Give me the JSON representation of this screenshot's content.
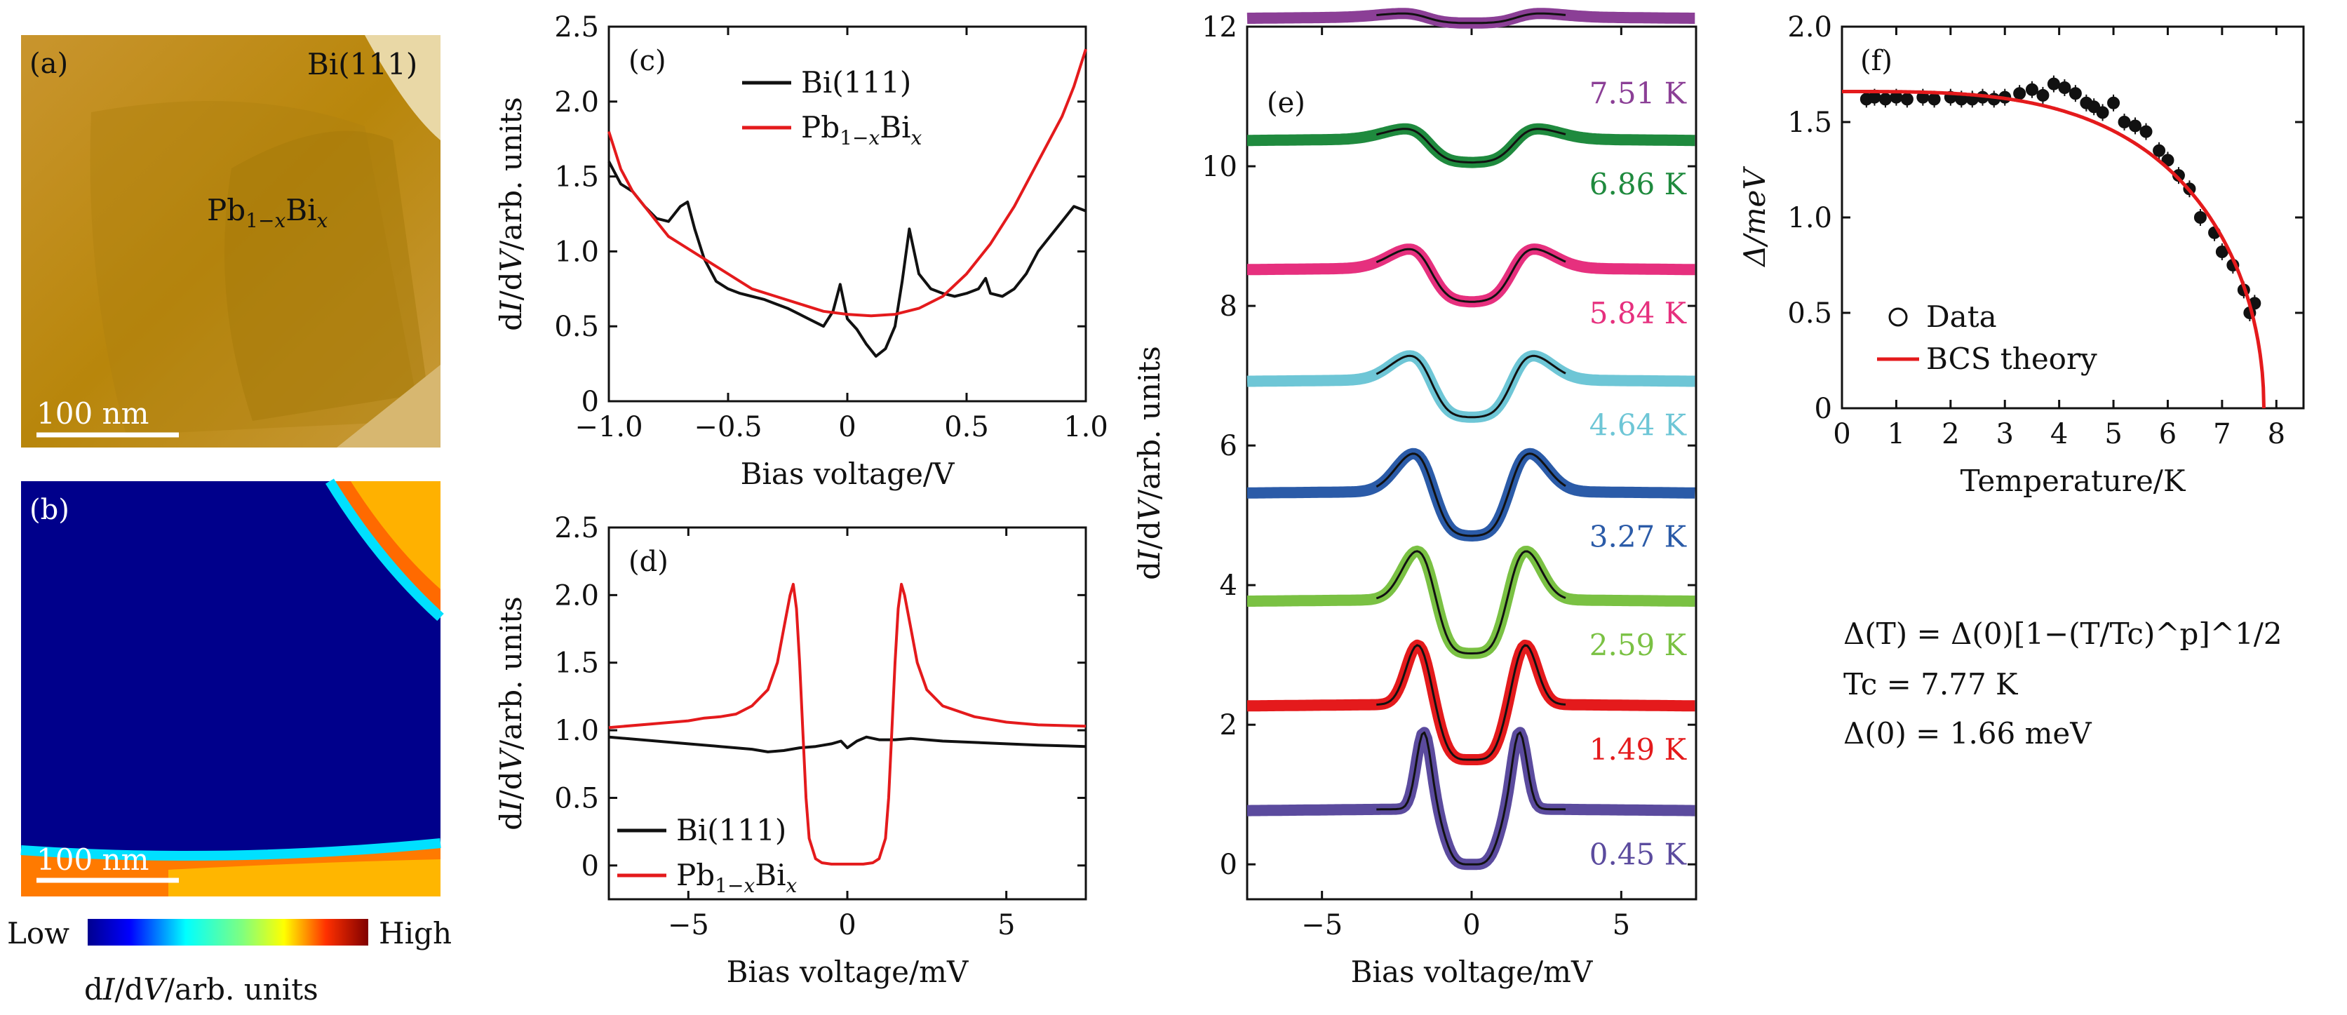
{
  "panels": {
    "a": {
      "letter": "(a)",
      "region_bi": "Bi(111)",
      "region_pbbi": "Pb1−xBix",
      "scalebar": "100 nm"
    },
    "b": {
      "letter": "(b)",
      "scalebar": "100 nm",
      "colorbar_low": "Low",
      "colorbar_high": "High",
      "colorbar_label": "dI/dV/arb. units"
    },
    "c": {
      "letter": "(c)"
    },
    "d": {
      "letter": "(d)"
    },
    "e": {
      "letter": "(e)"
    },
    "f": {
      "letter": "(f)",
      "formula": "Δ(T) = Δ(0)[1−(T/Tc)^p]^1/2",
      "tc_text": "Tc = 7.77 K",
      "delta0_text": "Δ(0) = 1.66 meV"
    }
  },
  "colors": {
    "bi": "#111111",
    "pbbi": "#e41a1c",
    "bcs": "#e41a1c",
    "topo_bg": "#b8860b",
    "map_bg": "#00008b"
  },
  "chart_data": [
    {
      "id": "c",
      "type": "line",
      "xlabel": "Bias voltage/V",
      "ylabel": "dI/dV/arb. units",
      "xlim": [
        -1.0,
        1.0
      ],
      "ylim": [
        0,
        2.5
      ],
      "xticks": [
        "−1.0",
        "−0.5",
        "0",
        "0.5",
        "1.0"
      ],
      "yticks": [
        "0",
        "0.5",
        "1.0",
        "1.5",
        "2.0",
        "2.5"
      ],
      "legend_position": "top-center",
      "series": [
        {
          "name": "Bi(111)",
          "color": "#111111",
          "x": [
            -1.0,
            -0.95,
            -0.9,
            -0.85,
            -0.8,
            -0.75,
            -0.7,
            -0.67,
            -0.64,
            -0.6,
            -0.55,
            -0.5,
            -0.45,
            -0.4,
            -0.35,
            -0.3,
            -0.25,
            -0.2,
            -0.15,
            -0.1,
            -0.06,
            -0.03,
            0.0,
            0.04,
            0.08,
            0.12,
            0.16,
            0.2,
            0.23,
            0.26,
            0.28,
            0.3,
            0.35,
            0.4,
            0.45,
            0.5,
            0.55,
            0.58,
            0.6,
            0.65,
            0.7,
            0.75,
            0.8,
            0.85,
            0.9,
            0.95,
            1.0
          ],
          "y": [
            1.6,
            1.45,
            1.4,
            1.3,
            1.22,
            1.2,
            1.3,
            1.33,
            1.15,
            0.95,
            0.8,
            0.75,
            0.72,
            0.7,
            0.68,
            0.65,
            0.62,
            0.58,
            0.54,
            0.5,
            0.6,
            0.78,
            0.55,
            0.48,
            0.38,
            0.3,
            0.35,
            0.5,
            0.8,
            1.15,
            1.0,
            0.85,
            0.75,
            0.72,
            0.7,
            0.72,
            0.75,
            0.82,
            0.72,
            0.7,
            0.75,
            0.85,
            1.0,
            1.1,
            1.2,
            1.3,
            1.27
          ]
        },
        {
          "name": "Pb1−xBix",
          "color": "#e41a1c",
          "x": [
            -1.0,
            -0.95,
            -0.9,
            -0.85,
            -0.8,
            -0.75,
            -0.7,
            -0.6,
            -0.5,
            -0.4,
            -0.3,
            -0.2,
            -0.1,
            0.0,
            0.1,
            0.2,
            0.3,
            0.4,
            0.5,
            0.6,
            0.7,
            0.8,
            0.9,
            0.95,
            1.0
          ],
          "y": [
            1.8,
            1.55,
            1.4,
            1.3,
            1.2,
            1.1,
            1.05,
            0.95,
            0.85,
            0.75,
            0.7,
            0.65,
            0.6,
            0.58,
            0.57,
            0.58,
            0.62,
            0.7,
            0.85,
            1.05,
            1.3,
            1.6,
            1.9,
            2.1,
            2.35
          ]
        }
      ]
    },
    {
      "id": "d",
      "type": "line",
      "xlabel": "Bias voltage/mV",
      "ylabel": "dI/dV/arb. units",
      "xlim": [
        -7.5,
        7.5
      ],
      "ylim": [
        -0.25,
        2.5
      ],
      "xticks": [
        "−5",
        "0",
        "5"
      ],
      "yticks": [
        "0",
        "0.5",
        "1.0",
        "1.5",
        "2.0",
        "2.5"
      ],
      "legend_position": "bottom-left",
      "series": [
        {
          "name": "Bi(111)",
          "color": "#111111",
          "x": [
            -7.5,
            -6,
            -5,
            -4,
            -3,
            -2.5,
            -2,
            -1.5,
            -1,
            -0.5,
            -0.2,
            0,
            0.3,
            0.6,
            1,
            1.5,
            2,
            3,
            4,
            5,
            6,
            7.5
          ],
          "y": [
            0.95,
            0.92,
            0.9,
            0.88,
            0.86,
            0.84,
            0.85,
            0.87,
            0.88,
            0.9,
            0.92,
            0.87,
            0.92,
            0.95,
            0.93,
            0.93,
            0.94,
            0.92,
            0.91,
            0.9,
            0.89,
            0.88
          ]
        },
        {
          "name": "Pb1−xBix",
          "color": "#e41a1c",
          "x": [
            -7.5,
            -6,
            -5,
            -4.5,
            -4,
            -3.5,
            -3,
            -2.5,
            -2.2,
            -2,
            -1.8,
            -1.7,
            -1.6,
            -1.5,
            -1.4,
            -1.3,
            -1.2,
            -1.0,
            -0.8,
            -0.5,
            0,
            0.5,
            0.8,
            1.0,
            1.2,
            1.3,
            1.4,
            1.5,
            1.6,
            1.7,
            1.8,
            2,
            2.2,
            2.5,
            3,
            4,
            5,
            6,
            7.5
          ],
          "y": [
            1.02,
            1.05,
            1.07,
            1.09,
            1.1,
            1.12,
            1.18,
            1.3,
            1.5,
            1.75,
            2.0,
            2.08,
            1.9,
            1.5,
            1.0,
            0.5,
            0.2,
            0.05,
            0.02,
            0.01,
            0.01,
            0.01,
            0.02,
            0.05,
            0.2,
            0.5,
            1.0,
            1.5,
            1.9,
            2.08,
            2.0,
            1.75,
            1.5,
            1.3,
            1.18,
            1.1,
            1.06,
            1.04,
            1.03
          ]
        }
      ]
    },
    {
      "id": "e",
      "type": "line",
      "xlabel": "Bias voltage/mV",
      "ylabel": "dI/dV/arb. units",
      "xlim": [
        -7.5,
        7.5
      ],
      "ylim": [
        -0.5,
        12
      ],
      "xticks": [
        "−5",
        "0",
        "5"
      ],
      "yticks": [
        "0",
        "2",
        "4",
        "6",
        "8",
        "10",
        "12"
      ],
      "series": [
        {
          "name": "0.45 K",
          "color": "#5b4b9e",
          "offset": 0.0,
          "gap_mV": 1.6,
          "depth": 0.8,
          "width_mV": 0.35,
          "peak_height": 1.1
        },
        {
          "name": "1.49 K",
          "color": "#e41a1c",
          "offset": 1.5,
          "gap_mV": 1.8,
          "depth": 0.8,
          "width_mV": 0.55,
          "peak_height": 0.85
        },
        {
          "name": "2.59 K",
          "color": "#7ac143",
          "offset": 3.0,
          "gap_mV": 1.8,
          "depth": 0.78,
          "width_mV": 0.75,
          "peak_height": 0.7
        },
        {
          "name": "3.27 K",
          "color": "#2b5ba8",
          "offset": 4.55,
          "gap_mV": 1.9,
          "depth": 0.65,
          "width_mV": 0.9,
          "peak_height": 0.55
        },
        {
          "name": "4.64 K",
          "color": "#6ec6d6",
          "offset": 6.15,
          "gap_mV": 2.0,
          "depth": 0.55,
          "width_mV": 1.0,
          "peak_height": 0.35
        },
        {
          "name": "5.84 K",
          "color": "#e6307e",
          "offset": 7.75,
          "gap_mV": 2.0,
          "depth": 0.5,
          "width_mV": 1.1,
          "peak_height": 0.28
        },
        {
          "name": "6.86 K",
          "color": "#1f8a3e",
          "offset": 9.6,
          "gap_mV": 2.1,
          "depth": 0.35,
          "width_mV": 1.2,
          "peak_height": 0.15
        },
        {
          "name": "7.51 K",
          "color": "#8b3f96",
          "offset": 11.35,
          "gap_mV": 2.2,
          "depth": 0.1,
          "width_mV": 1.3,
          "peak_height": 0.05
        }
      ]
    },
    {
      "id": "f",
      "type": "scatter",
      "xlabel": "Temperature/K",
      "ylabel": "Δ/meV",
      "xlim": [
        0,
        8.5
      ],
      "ylim": [
        0,
        2.0
      ],
      "xticks": [
        "0",
        "1",
        "2",
        "3",
        "4",
        "5",
        "6",
        "7",
        "8"
      ],
      "yticks": [
        "0",
        "0.5",
        "1.0",
        "1.5",
        "2.0"
      ],
      "legend_position": "lower-left",
      "series": [
        {
          "name": "Data",
          "color": "#111111",
          "x": [
            0.45,
            0.6,
            0.8,
            1.0,
            1.2,
            1.49,
            1.7,
            2.0,
            2.2,
            2.4,
            2.59,
            2.8,
            3.0,
            3.27,
            3.5,
            3.7,
            3.9,
            4.1,
            4.3,
            4.5,
            4.64,
            4.8,
            5.0,
            5.2,
            5.4,
            5.6,
            5.84,
            6.0,
            6.2,
            6.4,
            6.6,
            6.86,
            7.0,
            7.2,
            7.4,
            7.51,
            7.6
          ],
          "y": [
            1.62,
            1.63,
            1.62,
            1.63,
            1.62,
            1.63,
            1.62,
            1.63,
            1.62,
            1.62,
            1.63,
            1.62,
            1.63,
            1.65,
            1.67,
            1.64,
            1.7,
            1.68,
            1.65,
            1.6,
            1.58,
            1.55,
            1.6,
            1.5,
            1.48,
            1.45,
            1.35,
            1.3,
            1.22,
            1.15,
            1.0,
            0.92,
            0.82,
            0.75,
            0.62,
            0.5,
            0.55
          ]
        },
        {
          "name": "BCS theory",
          "color": "#e41a1c",
          "type": "line",
          "delta0": 1.66,
          "tc": 7.77,
          "p": 3.3
        }
      ]
    }
  ]
}
